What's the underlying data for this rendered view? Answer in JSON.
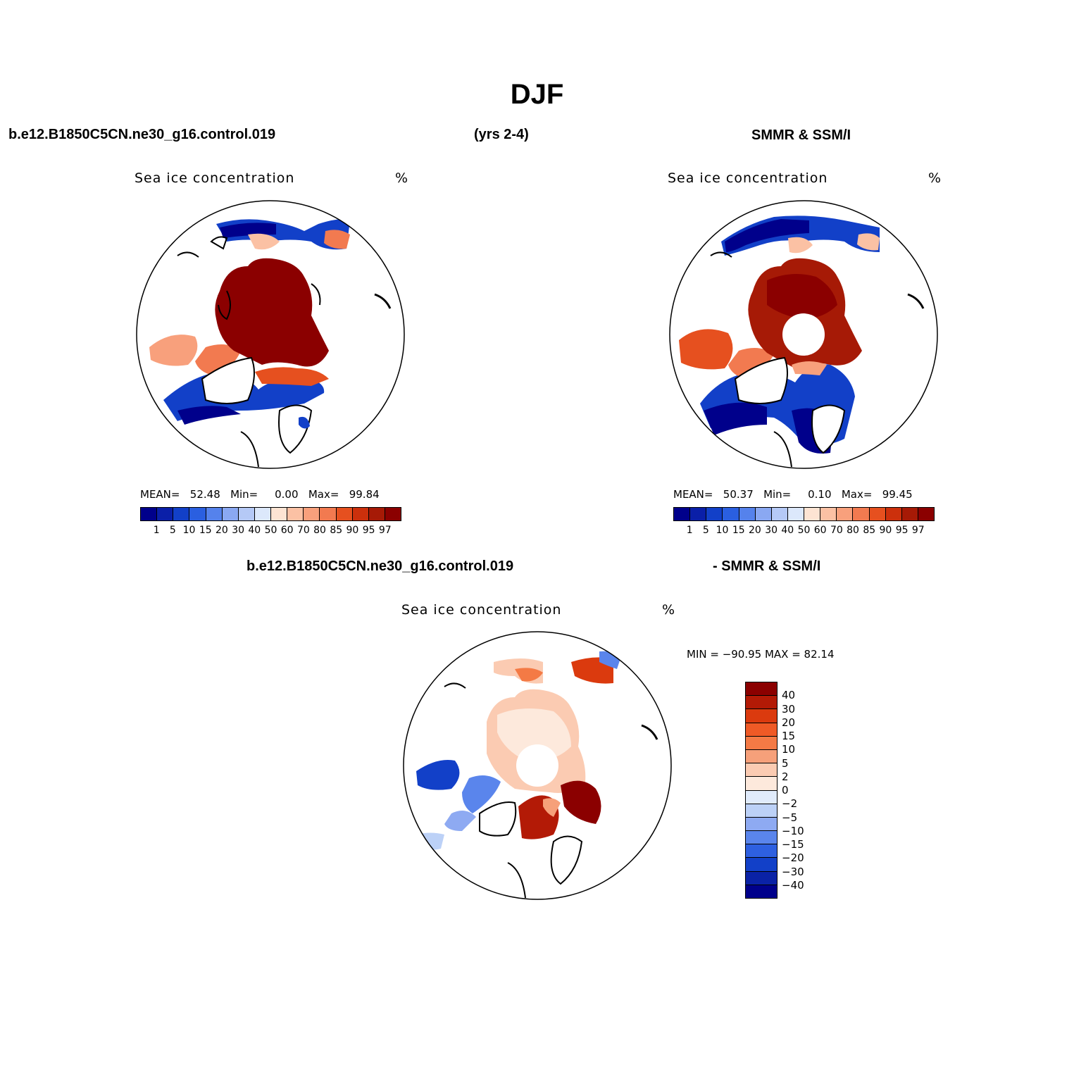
{
  "title": "DJF",
  "header": {
    "case_name": "b.e12.B1850C5CN.ne30_g16.control.019",
    "years": "(yrs 2-4)",
    "obs_name": "SMMR & SSM/I"
  },
  "panels": [
    {
      "plot_title": "Sea ice concentration",
      "units": "%",
      "stats": {
        "mean_label": "MEAN=",
        "mean": "52.48",
        "min_label": "Min=",
        "min": "0.00",
        "max_label": "Max=",
        "max": "99.84"
      },
      "has_pole_hole": false
    },
    {
      "plot_title": "Sea ice concentration",
      "units": "%",
      "stats": {
        "mean_label": "MEAN=",
        "mean": "50.37",
        "min_label": "Min=",
        "min": "0.10",
        "max_label": "Max=",
        "max": "99.45"
      },
      "has_pole_hole": true
    }
  ],
  "diff_header": {
    "case_name": "b.e12.B1850C5CN.ne30_g16.control.019",
    "obs_name": "- SMMR & SSM/I"
  },
  "diff_panel": {
    "plot_title": "Sea ice concentration",
    "units": "%",
    "minmax": "MIN = −90.95 MAX =   82.14"
  },
  "colorbar": {
    "labels": [
      "1",
      "5",
      "10",
      "15",
      "20",
      "30",
      "40",
      "50",
      "60",
      "70",
      "80",
      "85",
      "90",
      "95",
      "97"
    ],
    "colors": [
      "#00008b",
      "#0a1fa8",
      "#1240c8",
      "#2a5fe0",
      "#5582ec",
      "#8aa8f2",
      "#b5c9f6",
      "#dce8fb",
      "#fde4d3",
      "#fbc1a4",
      "#f8a07c",
      "#f27a50",
      "#e6501f",
      "#cc300c",
      "#a61a06",
      "#8b0000"
    ]
  },
  "diff_colorbar": {
    "labels": [
      "40",
      "30",
      "20",
      "15",
      "10",
      "5",
      "2",
      "0",
      "−2",
      "−5",
      "−10",
      "−15",
      "−20",
      "−30",
      "−40"
    ],
    "colors": [
      "#8b0000",
      "#b31a06",
      "#db3a0e",
      "#ef5a26",
      "#f47a45",
      "#f6a07a",
      "#fbcbb2",
      "#fde9dc",
      "#e0ebfb",
      "#bcd1f7",
      "#8eaaf2",
      "#5a85ec",
      "#2e60e0",
      "#1240c8",
      "#0a22a6",
      "#00008b"
    ]
  }
}
